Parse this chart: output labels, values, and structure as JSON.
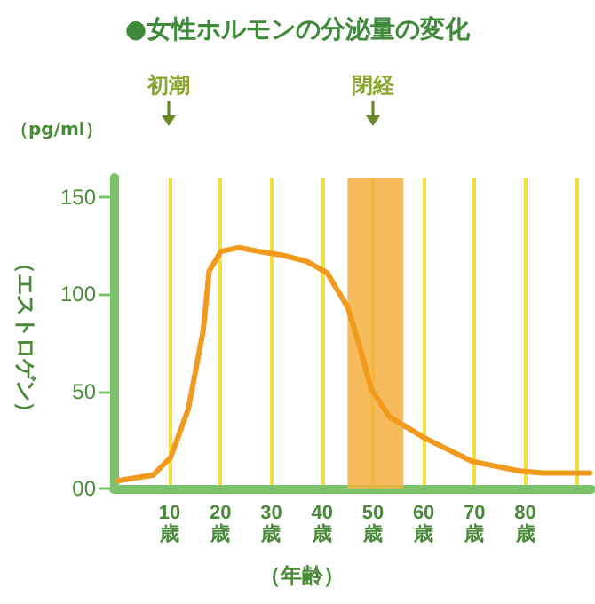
{
  "chart_data": {
    "type": "line",
    "title": "●女性ホルモンの分泌量の変化",
    "xlabel": "（年齢）",
    "ylabel": "（エストロゲン）",
    "annotations": [
      "初潮",
      "閉経",
      "（pg/ml）"
    ],
    "x": [
      -0.2,
      6.8,
      10.2,
      13.7,
      16.6,
      17.8,
      20.1,
      23.6,
      27.6,
      32.3,
      36.9,
      41.0,
      45.1,
      47.4,
      49.7,
      53.2,
      60.2,
      69.5,
      78.8,
      83.4,
      92.7
    ],
    "series": [
      {
        "color": "#f29a1e",
        "values": [
          4,
          7,
          16,
          41,
          81,
          112,
          122,
          124,
          122,
          120,
          117,
          111,
          93,
          73,
          51,
          37,
          26,
          14,
          9,
          8,
          8
        ]
      }
    ],
    "xlim": [
      -1,
      93
    ],
    "xticks": [
      {
        "value": 10,
        "label": "10\n歳"
      },
      {
        "value": 20,
        "label": "20\n歳"
      },
      {
        "value": 30,
        "label": "30\n歳"
      },
      {
        "value": 40,
        "label": "40\n歳"
      },
      {
        "value": 50,
        "label": "50\n歳"
      },
      {
        "value": 60,
        "label": "60\n歳"
      },
      {
        "value": 70,
        "label": "70\n歳"
      },
      {
        "value": 80,
        "label": "80\n歳"
      },
      {
        "value": 90,
        "label": null
      }
    ],
    "ylim": [
      0,
      160
    ],
    "yticks": [
      {
        "value": 0,
        "label": "00"
      },
      50,
      100,
      150
    ],
    "bands": [
      {
        "axis": "x",
        "from": 45,
        "to": 56,
        "color": "#f5b040"
      }
    ],
    "grid": "x",
    "marker": "none",
    "line_style": "solid"
  }
}
